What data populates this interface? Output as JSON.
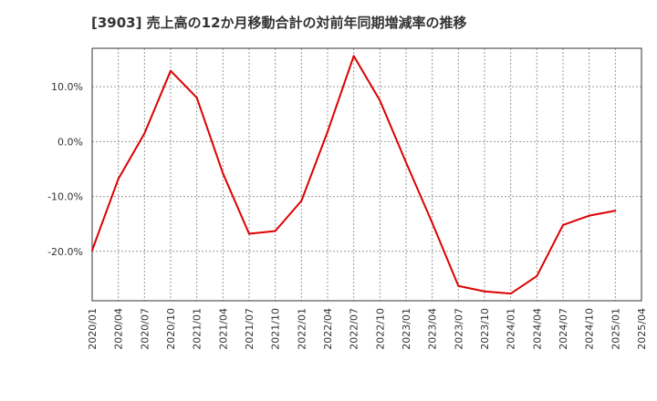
{
  "chart_data": {
    "type": "line",
    "title": "[3903]  売上高の12か月移動合計の対前年同期増減率の推移",
    "xlabel": "",
    "ylabel": "",
    "grid": true,
    "line_color": "#dd0000",
    "categories": [
      "2020/01",
      "2020/04",
      "2020/07",
      "2020/10",
      "2021/01",
      "2021/04",
      "2021/07",
      "2021/10",
      "2022/01",
      "2022/04",
      "2022/07",
      "2022/10",
      "2023/01",
      "2023/04",
      "2023/07",
      "2023/10",
      "2024/01",
      "2024/04",
      "2024/07",
      "2024/10",
      "2025/01",
      "2025/04"
    ],
    "ylim": [
      -29.0,
      17.0
    ],
    "yticks": [
      -20,
      -10,
      0,
      10
    ],
    "ytick_labels": [
      "-20.0%",
      "-10.0%",
      "0.0%",
      "10.0%"
    ],
    "series": [
      {
        "name": "対前年同期増減率",
        "values": [
          -19.8,
          -6.8,
          1.5,
          12.9,
          8.0,
          -5.8,
          -16.8,
          -16.3,
          -10.8,
          1.8,
          15.6,
          7.5,
          -3.8,
          -14.8,
          -26.3,
          -27.3,
          -27.7,
          -24.5,
          -15.2,
          -13.5,
          -12.6,
          null
        ]
      }
    ]
  }
}
